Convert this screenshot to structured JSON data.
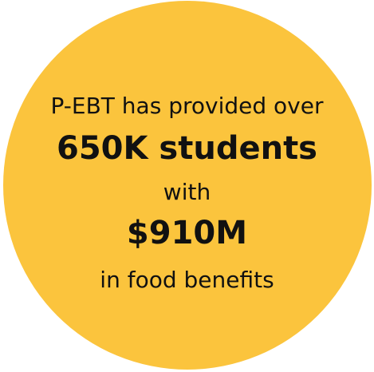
{
  "badge": {
    "background_color": "#FBC43D",
    "text_color": "#111111",
    "line1": "P-EBT has provided over",
    "line2": "650K students",
    "line3": "with",
    "line4": "$910M",
    "line5": "in food benefits"
  }
}
